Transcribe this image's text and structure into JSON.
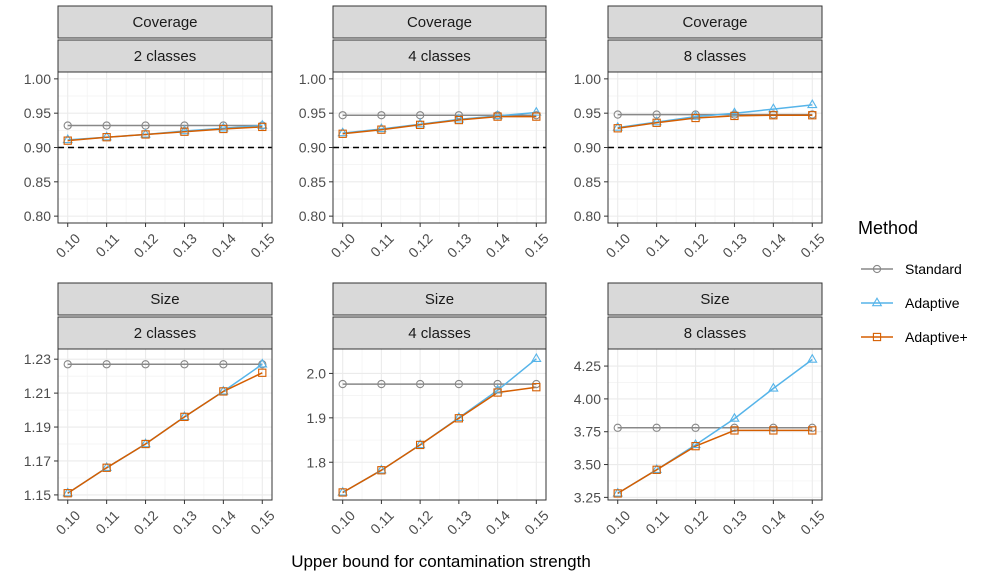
{
  "chart_data": {
    "type": "line",
    "xlabel": "Upper bound for contamination strength",
    "x": [
      0.1,
      0.11,
      0.12,
      0.13,
      0.14,
      0.15
    ],
    "x_tick_labels": [
      "0.10",
      "0.11",
      "0.12",
      "0.13",
      "0.14",
      "0.15"
    ],
    "legend": {
      "title": "Method",
      "position": "right",
      "entries": [
        {
          "name": "Standard",
          "color": "#888888",
          "marker": "circle"
        },
        {
          "name": "Adaptive",
          "color": "#56B4E9",
          "marker": "triangle"
        },
        {
          "name": "Adaptive+",
          "color": "#D55E00",
          "marker": "square"
        }
      ]
    },
    "grid": true,
    "panels": [
      {
        "strip": [
          "Coverage",
          "2 classes"
        ],
        "ylim": [
          0.79,
          1.01
        ],
        "yticks": [
          0.8,
          0.85,
          0.9,
          0.95,
          1.0
        ],
        "ytick_labels": [
          "0.80",
          "0.85",
          "0.90",
          "0.95",
          "1.00"
        ],
        "hline": 0.9,
        "series": [
          {
            "name": "Standard",
            "values": [
              0.932,
              0.932,
              0.932,
              0.932,
              0.932,
              0.932
            ]
          },
          {
            "name": "Adaptive",
            "values": [
              0.911,
              0.915,
              0.919,
              0.924,
              0.928,
              0.932
            ]
          },
          {
            "name": "Adaptive+",
            "values": [
              0.91,
              0.915,
              0.919,
              0.923,
              0.927,
              0.93
            ]
          }
        ]
      },
      {
        "strip": [
          "Coverage",
          "4 classes"
        ],
        "ylim": [
          0.79,
          1.01
        ],
        "yticks": [
          0.8,
          0.85,
          0.9,
          0.95,
          1.0
        ],
        "ytick_labels": [
          "0.80",
          "0.85",
          "0.90",
          "0.95",
          "1.00"
        ],
        "hline": 0.9,
        "series": [
          {
            "name": "Standard",
            "values": [
              0.947,
              0.947,
              0.947,
              0.947,
              0.947,
              0.947
            ]
          },
          {
            "name": "Adaptive",
            "values": [
              0.921,
              0.927,
              0.934,
              0.941,
              0.946,
              0.951
            ]
          },
          {
            "name": "Adaptive+",
            "values": [
              0.92,
              0.926,
              0.933,
              0.94,
              0.945,
              0.945
            ]
          }
        ]
      },
      {
        "strip": [
          "Coverage",
          "8 classes"
        ],
        "ylim": [
          0.79,
          1.01
        ],
        "yticks": [
          0.8,
          0.85,
          0.9,
          0.95,
          1.0
        ],
        "ytick_labels": [
          "0.80",
          "0.85",
          "0.90",
          "0.95",
          "1.00"
        ],
        "hline": 0.9,
        "series": [
          {
            "name": "Standard",
            "values": [
              0.948,
              0.948,
              0.948,
              0.948,
              0.948,
              0.948
            ]
          },
          {
            "name": "Adaptive",
            "values": [
              0.929,
              0.937,
              0.945,
              0.95,
              0.956,
              0.962
            ]
          },
          {
            "name": "Adaptive+",
            "values": [
              0.928,
              0.936,
              0.943,
              0.946,
              0.947,
              0.947
            ]
          }
        ]
      },
      {
        "strip": [
          "Size",
          "2 classes"
        ],
        "ylim": [
          1.147,
          1.236
        ],
        "yticks": [
          1.15,
          1.17,
          1.19,
          1.21,
          1.23
        ],
        "ytick_labels": [
          "1.15",
          "1.17",
          "1.19",
          "1.21",
          "1.23"
        ],
        "series": [
          {
            "name": "Standard",
            "values": [
              1.227,
              1.227,
              1.227,
              1.227,
              1.227,
              1.227
            ]
          },
          {
            "name": "Adaptive",
            "values": [
              1.151,
              1.166,
              1.18,
              1.196,
              1.211,
              1.227
            ]
          },
          {
            "name": "Adaptive+",
            "values": [
              1.151,
              1.166,
              1.18,
              1.196,
              1.211,
              1.222
            ]
          }
        ]
      },
      {
        "strip": [
          "Size",
          "4 classes"
        ],
        "ylim": [
          1.715,
          2.055
        ],
        "yticks": [
          1.8,
          1.9,
          2.0
        ],
        "ytick_labels": [
          "1.8",
          "1.9",
          "2.0"
        ],
        "series": [
          {
            "name": "Standard",
            "values": [
              1.976,
              1.976,
              1.976,
              1.976,
              1.976,
              1.976
            ]
          },
          {
            "name": "Adaptive",
            "values": [
              1.732,
              1.782,
              1.839,
              1.9,
              1.962,
              2.033
            ]
          },
          {
            "name": "Adaptive+",
            "values": [
              1.732,
              1.782,
              1.839,
              1.899,
              1.957,
              1.969
            ]
          }
        ]
      },
      {
        "strip": [
          "Size",
          "8 classes"
        ],
        "ylim": [
          3.23,
          4.38
        ],
        "yticks": [
          3.25,
          3.5,
          3.75,
          4.0,
          4.25
        ],
        "ytick_labels": [
          "3.25",
          "3.50",
          "3.75",
          "4.00",
          "4.25"
        ],
        "series": [
          {
            "name": "Standard",
            "values": [
              3.78,
              3.78,
              3.78,
              3.78,
              3.78,
              3.78
            ]
          },
          {
            "name": "Adaptive",
            "values": [
              3.28,
              3.46,
              3.65,
              3.85,
              4.08,
              4.3
            ]
          },
          {
            "name": "Adaptive+",
            "values": [
              3.28,
              3.46,
              3.64,
              3.76,
              3.76,
              3.76
            ]
          }
        ]
      }
    ]
  }
}
